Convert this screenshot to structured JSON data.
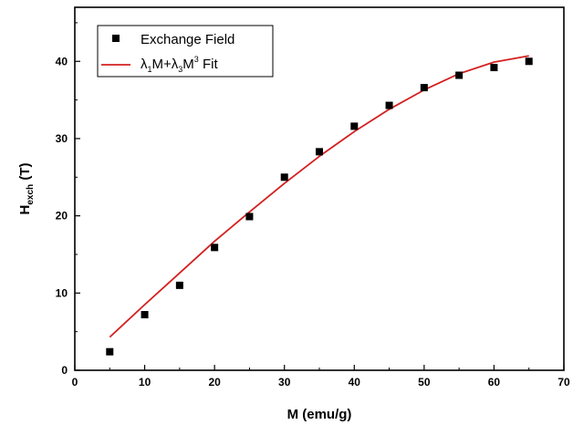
{
  "chart_data": {
    "type": "scatter",
    "xlabel": "M (emu/g)",
    "ylabel": {
      "main": "H",
      "sub": "exch",
      "unit": " (T)"
    },
    "xlim": [
      0,
      70
    ],
    "ylim": [
      0,
      47
    ],
    "xticks": [
      0,
      10,
      20,
      30,
      40,
      50,
      60,
      70
    ],
    "yticks": [
      0,
      10,
      20,
      30,
      40
    ],
    "grid": false,
    "legend_position": "top-left",
    "series": [
      {
        "name": "Exchange Field",
        "kind": "scatter",
        "marker": "square",
        "color": "#000000",
        "x": [
          5,
          10,
          15,
          20,
          25,
          30,
          35,
          40,
          45,
          50,
          55,
          60,
          65
        ],
        "y": [
          2.4,
          7.2,
          11.0,
          15.9,
          19.9,
          25.0,
          28.3,
          31.6,
          34.3,
          36.6,
          38.2,
          39.2,
          40.0
        ]
      },
      {
        "name_parts": {
          "l1": "λ",
          "s1": "1",
          "m1": "M+λ",
          "s2": "3",
          "m2": "M",
          "sup": "3",
          "end": " Fit"
        },
        "kind": "line",
        "color": "#d42020",
        "x": [
          5,
          10,
          15,
          20,
          25,
          30,
          35,
          40,
          45,
          50,
          55,
          60,
          65
        ],
        "y": [
          4.3,
          8.5,
          12.6,
          16.7,
          20.5,
          24.2,
          27.7,
          30.9,
          33.8,
          36.3,
          38.4,
          39.9,
          40.7
        ]
      }
    ]
  }
}
